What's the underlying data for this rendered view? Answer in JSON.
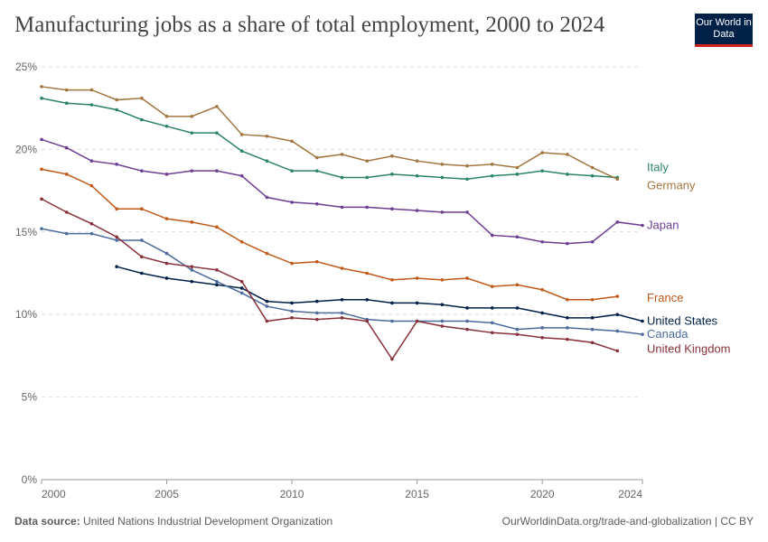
{
  "header": {
    "title": "Manufacturing jobs as a share of total employment, 2000 to 2024",
    "logo_text": "Our World in Data"
  },
  "footer": {
    "source_label": "Data source:",
    "source": "United Nations Industrial Development Organization",
    "url": "OurWorldinData.org/trade-and-globalization | CC BY"
  },
  "chart_data": {
    "type": "line",
    "title": "Manufacturing jobs as a share of total employment, 2000 to 2024",
    "xlim": [
      2000,
      2024
    ],
    "ylim": [
      0,
      25
    ],
    "x_ticks": [
      "2000",
      "2005",
      "2010",
      "2015",
      "2020",
      "2024"
    ],
    "y_ticks": [
      {
        "v": 0,
        "label": "0%"
      },
      {
        "v": 5,
        "label": "5%"
      },
      {
        "v": 10,
        "label": "10%"
      },
      {
        "v": 15,
        "label": "15%"
      },
      {
        "v": 20,
        "label": "20%"
      },
      {
        "v": 25,
        "label": "25%"
      }
    ],
    "grid": "horizontal dashed",
    "legend": "right (line-end labels)",
    "series": [
      {
        "name": "Italy",
        "color": "#2c8465",
        "start": 2000,
        "values": [
          23.1,
          22.8,
          22.7,
          22.4,
          21.8,
          21.4,
          21.0,
          21.0,
          19.9,
          19.3,
          18.7,
          18.7,
          18.3,
          18.3,
          18.5,
          18.4,
          18.3,
          18.2,
          18.4,
          18.5,
          18.7,
          18.5,
          18.4,
          18.3
        ],
        "label_value": 18.9
      },
      {
        "name": "Germany",
        "color": "#a2753f",
        "start": 2000,
        "values": [
          23.8,
          23.6,
          23.6,
          23.0,
          23.1,
          22.0,
          22.0,
          22.6,
          20.9,
          20.8,
          20.5,
          19.5,
          19.7,
          19.3,
          19.6,
          19.3,
          19.1,
          19.0,
          19.1,
          18.9,
          19.8,
          19.7,
          18.9,
          18.2
        ],
        "label_value": 17.8
      },
      {
        "name": "Japan",
        "color": "#6d3e91",
        "start": 2000,
        "values": [
          20.6,
          20.1,
          19.3,
          19.1,
          18.7,
          18.5,
          18.7,
          18.7,
          18.4,
          17.1,
          16.8,
          16.7,
          16.5,
          16.5,
          16.4,
          16.3,
          16.2,
          16.2,
          14.8,
          14.7,
          14.4,
          14.3,
          14.4,
          15.6,
          15.4
        ],
        "label_value": 15.4
      },
      {
        "name": "France",
        "color": "#c05917",
        "start": 2000,
        "values": [
          18.8,
          18.5,
          17.8,
          16.4,
          16.4,
          15.8,
          15.6,
          15.3,
          14.4,
          13.7,
          13.1,
          13.2,
          12.8,
          12.5,
          12.1,
          12.2,
          12.1,
          12.2,
          11.7,
          11.8,
          11.5,
          10.9,
          10.9,
          11.1
        ],
        "label_value": 11.0
      },
      {
        "name": "United States",
        "color": "#002147",
        "start": 2003,
        "values": [
          12.9,
          12.5,
          12.2,
          12.0,
          11.8,
          11.6,
          10.8,
          10.7,
          10.8,
          10.9,
          10.9,
          10.7,
          10.7,
          10.6,
          10.4,
          10.4,
          10.4,
          10.1,
          9.8,
          9.8,
          10.0,
          9.6
        ],
        "label_value": 9.6
      },
      {
        "name": "Canada",
        "color": "#4c6a9c",
        "start": 2000,
        "values": [
          15.2,
          14.9,
          14.9,
          14.5,
          14.5,
          13.7,
          12.7,
          12.0,
          11.3,
          10.5,
          10.2,
          10.1,
          10.1,
          9.7,
          9.6,
          9.6,
          9.6,
          9.6,
          9.5,
          9.1,
          9.2,
          9.2,
          9.1,
          9.0,
          8.8
        ],
        "label_value": 8.8
      },
      {
        "name": "United Kingdom",
        "color": "#883039",
        "start": 2000,
        "values": [
          17.0,
          16.2,
          15.5,
          14.7,
          13.5,
          13.1,
          12.9,
          12.7,
          12.0,
          9.6,
          9.8,
          9.7,
          9.8,
          9.6,
          7.3,
          9.6,
          9.3,
          9.1,
          8.9,
          8.8,
          8.6,
          8.5,
          8.3,
          7.8
        ],
        "label_value": 7.9
      }
    ]
  }
}
